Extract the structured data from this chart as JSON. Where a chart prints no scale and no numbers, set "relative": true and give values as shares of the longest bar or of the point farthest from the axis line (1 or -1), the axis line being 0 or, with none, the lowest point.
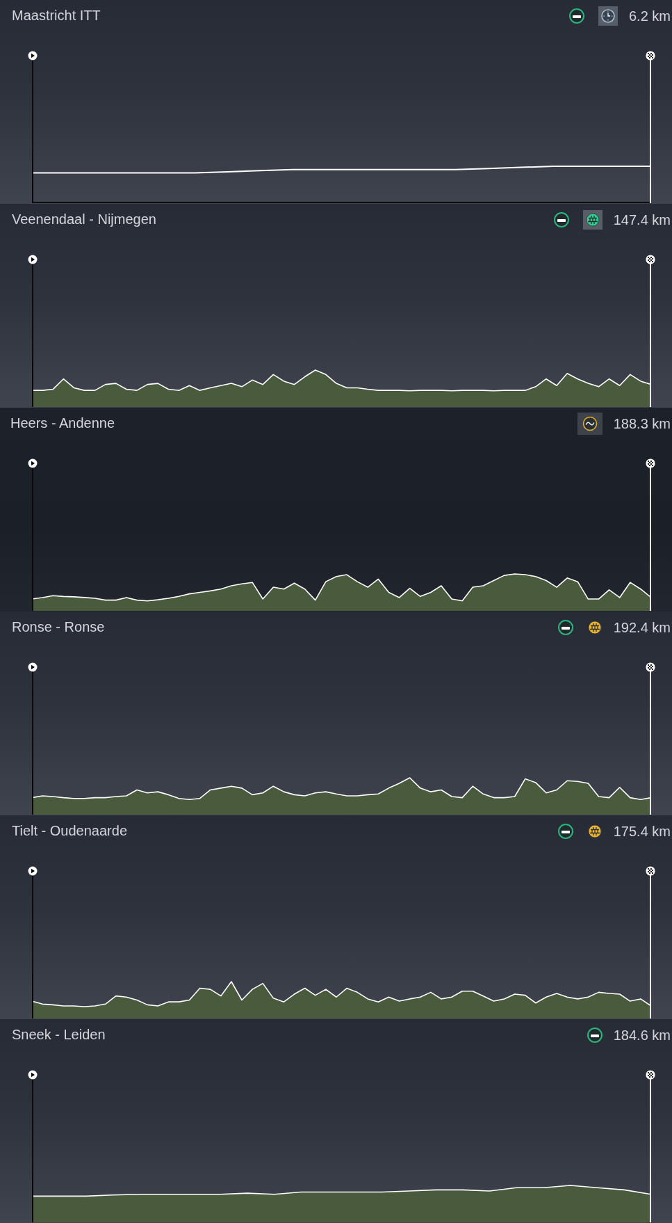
{
  "chart_data": [
    {
      "type": "line",
      "title": "Maastricht ITT",
      "annotations": [
        "6.2 km"
      ],
      "relative": true,
      "color": "#ffffff",
      "categories": [
        null,
        null,
        null,
        null,
        null,
        null,
        null,
        null,
        null,
        null,
        null,
        null,
        null,
        null,
        null,
        null,
        null,
        null,
        null,
        null
      ],
      "values": [
        0.82,
        0.82,
        0.82,
        0.82,
        0.82,
        0.82,
        0.85,
        0.88,
        0.91,
        0.91,
        0.91,
        0.91,
        0.91,
        0.91,
        0.94,
        0.97,
        1,
        1,
        1,
        1
      ]
    },
    {
      "type": "area",
      "title": "Veenendaal - Nijmegen",
      "annotations": [
        "147.4 km"
      ],
      "relative": true,
      "color": "#4a5a3d",
      "categories": [
        null,
        null,
        null,
        null,
        null,
        null,
        null,
        null,
        null,
        null,
        null,
        null,
        null,
        null,
        null,
        null,
        null,
        null,
        null,
        null,
        null,
        null,
        null,
        null,
        null,
        null,
        null,
        null,
        null,
        null,
        null,
        null,
        null,
        null,
        null,
        null,
        null,
        null,
        null,
        null,
        null,
        null,
        null,
        null,
        null,
        null,
        null,
        null,
        null,
        null,
        null,
        null,
        null,
        null,
        null,
        null,
        null,
        null,
        null,
        null
      ],
      "values": [
        0.45,
        0.45,
        0.48,
        0.76,
        0.52,
        0.45,
        0.45,
        0.61,
        0.64,
        0.48,
        0.45,
        0.61,
        0.64,
        0.48,
        0.45,
        0.58,
        0.45,
        0.52,
        0.58,
        0.64,
        0.55,
        0.73,
        0.61,
        0.88,
        0.7,
        0.61,
        0.82,
        1,
        0.88,
        0.64,
        0.52,
        0.52,
        0.48,
        0.45,
        0.45,
        0.45,
        0.44,
        0.45,
        0.45,
        0.45,
        0.44,
        0.45,
        0.45,
        0.45,
        0.44,
        0.45,
        0.45,
        0.45,
        0.55,
        0.76,
        0.58,
        0.91,
        0.76,
        0.64,
        0.55,
        0.76,
        0.58,
        0.88,
        0.7,
        0.61
      ]
    },
    {
      "type": "area",
      "title": "Heers - Andenne",
      "annotations": [
        "188.3 km"
      ],
      "relative": true,
      "color": "#4a5a3d",
      "categories": [
        null,
        null,
        null,
        null,
        null,
        null,
        null,
        null,
        null,
        null,
        null,
        null,
        null,
        null,
        null,
        null,
        null,
        null,
        null,
        null,
        null,
        null,
        null,
        null,
        null,
        null,
        null,
        null,
        null,
        null,
        null,
        null,
        null,
        null,
        null,
        null,
        null,
        null,
        null,
        null,
        null,
        null,
        null,
        null,
        null,
        null,
        null,
        null,
        null,
        null,
        null,
        null,
        null,
        null,
        null,
        null,
        null,
        null,
        null,
        null
      ],
      "values": [
        0.32,
        0.36,
        0.41,
        0.39,
        0.38,
        0.36,
        0.34,
        0.29,
        0.29,
        0.36,
        0.29,
        0.27,
        0.3,
        0.34,
        0.39,
        0.46,
        0.5,
        0.54,
        0.59,
        0.68,
        0.73,
        0.77,
        0.32,
        0.64,
        0.59,
        0.75,
        0.59,
        0.29,
        0.79,
        0.93,
        0.98,
        0.79,
        0.64,
        0.86,
        0.5,
        0.36,
        0.61,
        0.39,
        0.5,
        0.68,
        0.32,
        0.27,
        0.64,
        0.68,
        0.82,
        0.96,
        1,
        0.98,
        0.93,
        0.82,
        0.64,
        0.89,
        0.79,
        0.32,
        0.32,
        0.57,
        0.36,
        0.77,
        0.59,
        0.36
      ]
    },
    {
      "type": "area",
      "title": "Ronse - Ronse",
      "annotations": [
        "192.4 km"
      ],
      "relative": true,
      "color": "#4a5a3d",
      "categories": [
        null,
        null,
        null,
        null,
        null,
        null,
        null,
        null,
        null,
        null,
        null,
        null,
        null,
        null,
        null,
        null,
        null,
        null,
        null,
        null,
        null,
        null,
        null,
        null,
        null,
        null,
        null,
        null,
        null,
        null,
        null,
        null,
        null,
        null,
        null,
        null,
        null,
        null,
        null,
        null,
        null,
        null,
        null,
        null,
        null,
        null,
        null,
        null,
        null,
        null,
        null,
        null,
        null,
        null,
        null,
        null,
        null,
        null,
        null,
        null
      ],
      "values": [
        0.46,
        0.51,
        0.49,
        0.46,
        0.44,
        0.44,
        0.46,
        0.46,
        0.49,
        0.51,
        0.67,
        0.59,
        0.62,
        0.54,
        0.44,
        0.41,
        0.44,
        0.67,
        0.72,
        0.77,
        0.72,
        0.54,
        0.59,
        0.77,
        0.62,
        0.54,
        0.51,
        0.59,
        0.62,
        0.56,
        0.51,
        0.51,
        0.54,
        0.56,
        0.72,
        0.85,
        1,
        0.72,
        0.62,
        0.67,
        0.49,
        0.46,
        0.77,
        0.56,
        0.46,
        0.46,
        0.49,
        0.97,
        0.87,
        0.59,
        0.67,
        0.92,
        0.9,
        0.85,
        0.49,
        0.46,
        0.74,
        0.46,
        0.41,
        0.46
      ]
    },
    {
      "type": "area",
      "title": "Tielt - Oudenaarde",
      "annotations": [
        "175.4 km"
      ],
      "relative": true,
      "color": "#4a5a3d",
      "categories": [
        null,
        null,
        null,
        null,
        null,
        null,
        null,
        null,
        null,
        null,
        null,
        null,
        null,
        null,
        null,
        null,
        null,
        null,
        null,
        null,
        null,
        null,
        null,
        null,
        null,
        null,
        null,
        null,
        null,
        null,
        null,
        null,
        null,
        null,
        null,
        null,
        null,
        null,
        null,
        null,
        null,
        null,
        null,
        null,
        null,
        null,
        null,
        null,
        null,
        null,
        null,
        null,
        null,
        null,
        null,
        null,
        null,
        null,
        null,
        null
      ],
      "values": [
        0.47,
        0.39,
        0.37,
        0.34,
        0.34,
        0.32,
        0.34,
        0.39,
        0.61,
        0.58,
        0.5,
        0.37,
        0.34,
        0.45,
        0.45,
        0.5,
        0.82,
        0.79,
        0.61,
        1,
        0.5,
        0.79,
        0.95,
        0.55,
        0.45,
        0.66,
        0.82,
        0.63,
        0.79,
        0.58,
        0.82,
        0.71,
        0.53,
        0.45,
        0.58,
        0.47,
        0.53,
        0.58,
        0.71,
        0.53,
        0.58,
        0.74,
        0.74,
        0.61,
        0.47,
        0.53,
        0.66,
        0.63,
        0.42,
        0.58,
        0.68,
        0.58,
        0.53,
        0.58,
        0.71,
        0.68,
        0.66,
        0.47,
        0.53,
        0.34
      ]
    },
    {
      "type": "area",
      "title": "Sneek - Leiden",
      "annotations": [
        "184.6 km"
      ],
      "relative": true,
      "color": "#4a5a3d",
      "categories": [
        null,
        null,
        null,
        null,
        null,
        null,
        null,
        null,
        null,
        null,
        null,
        null,
        null,
        null,
        null,
        null,
        null,
        null,
        null,
        null,
        null,
        null,
        null,
        null
      ],
      "values": [
        0.71,
        0.71,
        0.71,
        0.74,
        0.76,
        0.76,
        0.76,
        0.76,
        0.79,
        0.76,
        0.82,
        0.82,
        0.82,
        0.82,
        0.85,
        0.88,
        0.88,
        0.85,
        0.94,
        0.94,
        1,
        0.94,
        0.88,
        0.76
      ]
    }
  ]
}
